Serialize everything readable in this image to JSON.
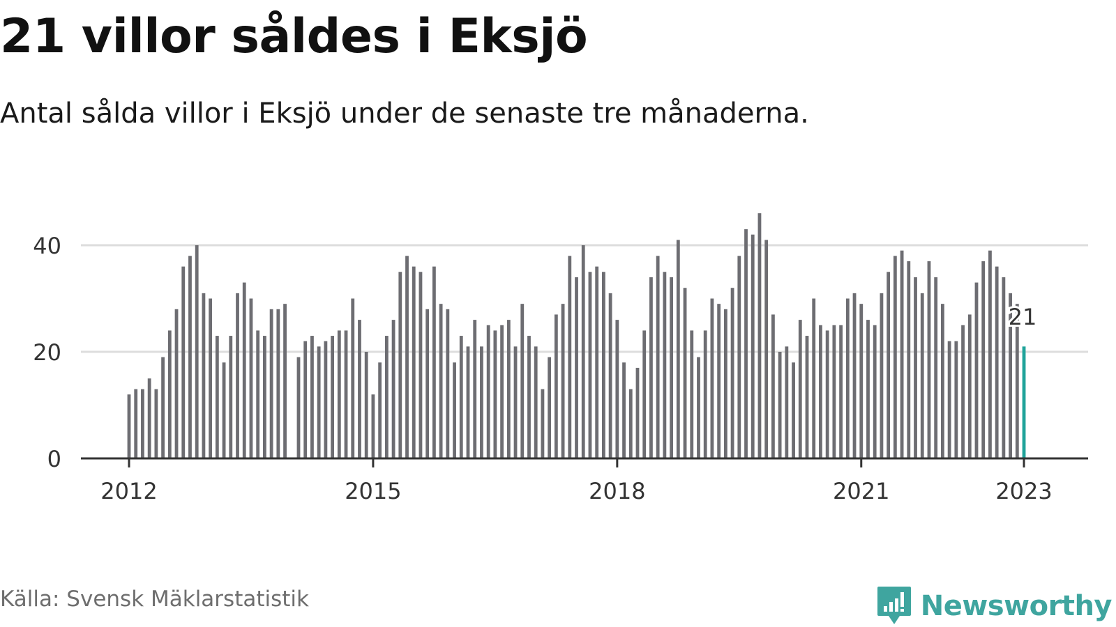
{
  "title": "21 villor såldes i Eksjö",
  "subtitle": "Antal sålda villor i Eksjö under de senaste tre månaderna.",
  "source": "Källa: Svensk Mäklarstatistik",
  "brand": {
    "name": "Newsworthy",
    "logo_icon": "bar-chart-speech-bubble-icon"
  },
  "colors": {
    "bar": "#6d6d72",
    "highlight": "#1fa39a",
    "grid": "#dddddd",
    "axis": "#333333",
    "brand": "#3fa59f"
  },
  "chart_data": {
    "type": "bar",
    "title": "21 villor såldes i Eksjö",
    "subtitle": "Antal sålda villor i Eksjö under de senaste tre månaderna.",
    "xlabel": "",
    "ylabel": "",
    "ylim": [
      0,
      48
    ],
    "grid": true,
    "y_ticks": [
      "0",
      "20",
      "40"
    ],
    "x_ticks": [
      "2012",
      "2015",
      "2018",
      "2021",
      "2023"
    ],
    "x_start": "2012-01",
    "x_interval": "month",
    "values": [
      12,
      13,
      13,
      15,
      13,
      19,
      24,
      28,
      36,
      38,
      40,
      31,
      30,
      23,
      18,
      23,
      31,
      33,
      30,
      24,
      23,
      28,
      28,
      29,
      null,
      19,
      22,
      23,
      21,
      22,
      23,
      24,
      24,
      30,
      26,
      20,
      12,
      18,
      23,
      26,
      35,
      38,
      36,
      35,
      28,
      36,
      29,
      28,
      18,
      23,
      21,
      26,
      21,
      25,
      24,
      25,
      26,
      21,
      29,
      23,
      21,
      13,
      19,
      27,
      29,
      38,
      34,
      40,
      35,
      36,
      35,
      31,
      26,
      18,
      13,
      17,
      24,
      34,
      38,
      35,
      34,
      41,
      32,
      24,
      19,
      24,
      30,
      29,
      28,
      32,
      38,
      43,
      42,
      46,
      41,
      27,
      20,
      21,
      18,
      26,
      23,
      30,
      25,
      24,
      25,
      25,
      30,
      31,
      29,
      26,
      25,
      31,
      35,
      38,
      39,
      37,
      34,
      31,
      37,
      34,
      29,
      22,
      22,
      25,
      27,
      33,
      37,
      39,
      36,
      34,
      31,
      29,
      21
    ],
    "highlight": {
      "index": 132,
      "label": "21",
      "value": 21
    }
  }
}
